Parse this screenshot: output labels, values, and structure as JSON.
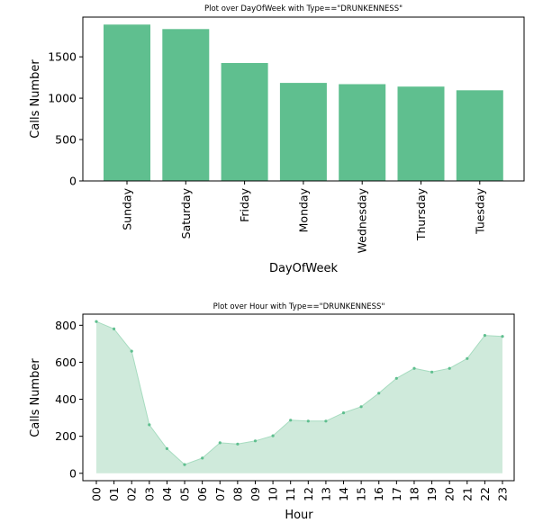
{
  "colors": {
    "bar": "#5fbf8f",
    "area_fill": "#cfeadb",
    "area_line": "#a7dcc0",
    "marker": "#5fbf8f",
    "axis": "#000000"
  },
  "chart_data": [
    {
      "type": "bar",
      "title": "Plot over DayOfWeek with Type==\"DRUNKENNESS\"",
      "xlabel": "DayOfWeek",
      "ylabel": "Calls Number",
      "categories": [
        "Sunday",
        "Saturday",
        "Friday",
        "Monday",
        "Wednesday",
        "Thursday",
        "Tuesday"
      ],
      "values": [
        1890,
        1835,
        1425,
        1185,
        1170,
        1140,
        1095
      ],
      "ylim": [
        0,
        1980
      ],
      "yticks": [
        0,
        500,
        1000,
        1500
      ],
      "grid": false,
      "legend": "none"
    },
    {
      "type": "area",
      "title": "Plot over Hour with Type==\"DRUNKENNESS\"",
      "xlabel": "Hour",
      "ylabel": "Calls Number",
      "categories": [
        "00",
        "01",
        "02",
        "03",
        "04",
        "05",
        "06",
        "07",
        "08",
        "09",
        "10",
        "11",
        "12",
        "13",
        "14",
        "15",
        "16",
        "17",
        "18",
        "19",
        "20",
        "21",
        "22",
        "23"
      ],
      "values": [
        820,
        780,
        660,
        262,
        133,
        47,
        82,
        165,
        158,
        175,
        203,
        287,
        282,
        282,
        327,
        360,
        433,
        513,
        567,
        547,
        567,
        620,
        745,
        740
      ],
      "ylim": [
        -40,
        860
      ],
      "yticks": [
        0,
        200,
        400,
        600,
        800
      ],
      "grid": false,
      "legend": "none"
    }
  ]
}
